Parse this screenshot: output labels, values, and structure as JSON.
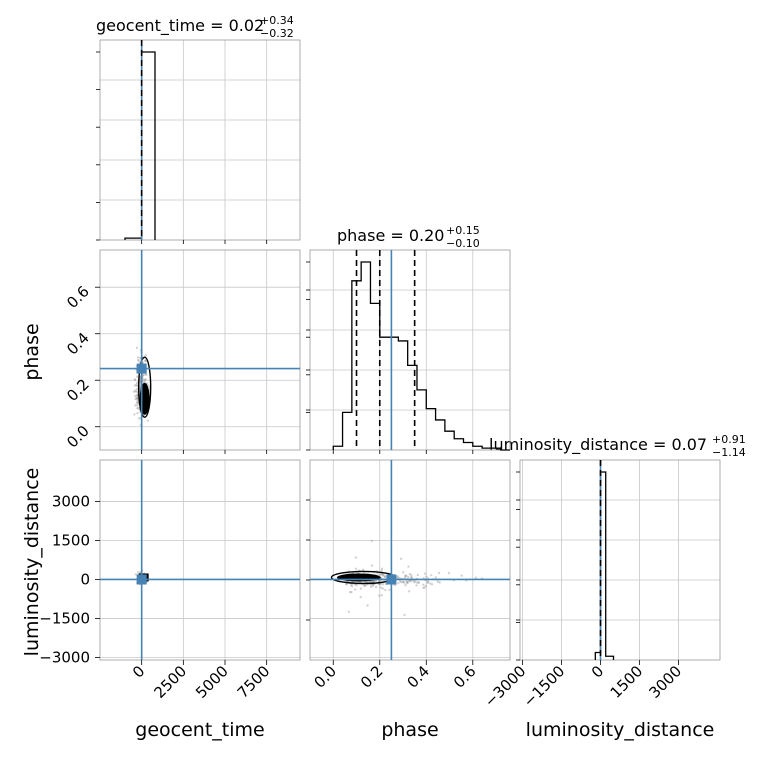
{
  "chart_data": {
    "type": "corner",
    "parameters": [
      "geocent_time",
      "phase",
      "luminosity_distance"
    ],
    "truths": {
      "geocent_time": 0,
      "phase": 0.25,
      "luminosity_distance": 0
    },
    "colors": {
      "truth": "#4682b4",
      "hist": "#000000",
      "grid": "#c8c8c8",
      "scatter": "#9e9e9e"
    },
    "grid": true,
    "titles": [
      {
        "param": "geocent_time",
        "label": "geocent_time = 0.02",
        "upper": "+0.34",
        "lower": "−0.32"
      },
      {
        "param": "phase",
        "label": "phase = 0.20",
        "upper": "+0.15",
        "lower": "−0.10"
      },
      {
        "param": "luminosity_distance",
        "label": "luminosity_distance = 0.07",
        "upper": "+0.91",
        "lower": "−1.14"
      }
    ],
    "axes": {
      "geocent_time": {
        "range": [
          -2500,
          9500
        ],
        "ticks": [
          0,
          2500,
          5000,
          7500
        ],
        "ticklabels": [
          "0",
          "2500",
          "5000",
          "7500"
        ]
      },
      "phase": {
        "range": [
          -0.1,
          0.76
        ],
        "ticks": [
          0.0,
          0.2,
          0.4,
          0.6
        ],
        "ticklabels": [
          "0.0",
          "0.2",
          "0.4",
          "0.6"
        ]
      },
      "luminosity_distance": {
        "range": [
          -3100,
          4600
        ],
        "ticks": [
          -3000,
          -1500,
          0,
          1500,
          3000
        ],
        "ticklabels": [
          "−3000",
          "−1500",
          "0",
          "1500",
          "3000"
        ]
      }
    },
    "marginals": {
      "geocent_time": {
        "bin_edges": [
          -1000,
          0,
          800
        ],
        "counts": [
          0.01,
          1.0
        ]
      },
      "phase": {
        "bin_edges": [
          0.0,
          0.04,
          0.08,
          0.12,
          0.16,
          0.2,
          0.24,
          0.28,
          0.32,
          0.36,
          0.4,
          0.44,
          0.48,
          0.52,
          0.56,
          0.6,
          0.64,
          0.68,
          0.72,
          0.76
        ],
        "counts": [
          0.02,
          0.2,
          0.9,
          1.0,
          0.78,
          0.6,
          0.6,
          0.58,
          0.45,
          0.32,
          0.22,
          0.16,
          0.1,
          0.06,
          0.04,
          0.02,
          0.01,
          0.01,
          0.0
        ],
        "quantiles": [
          0.1,
          0.2,
          0.35
        ]
      },
      "luminosity_distance": {
        "bin_edges": [
          -200,
          0,
          200,
          500
        ],
        "counts": [
          0.04,
          1.0,
          0.02
        ]
      }
    }
  }
}
